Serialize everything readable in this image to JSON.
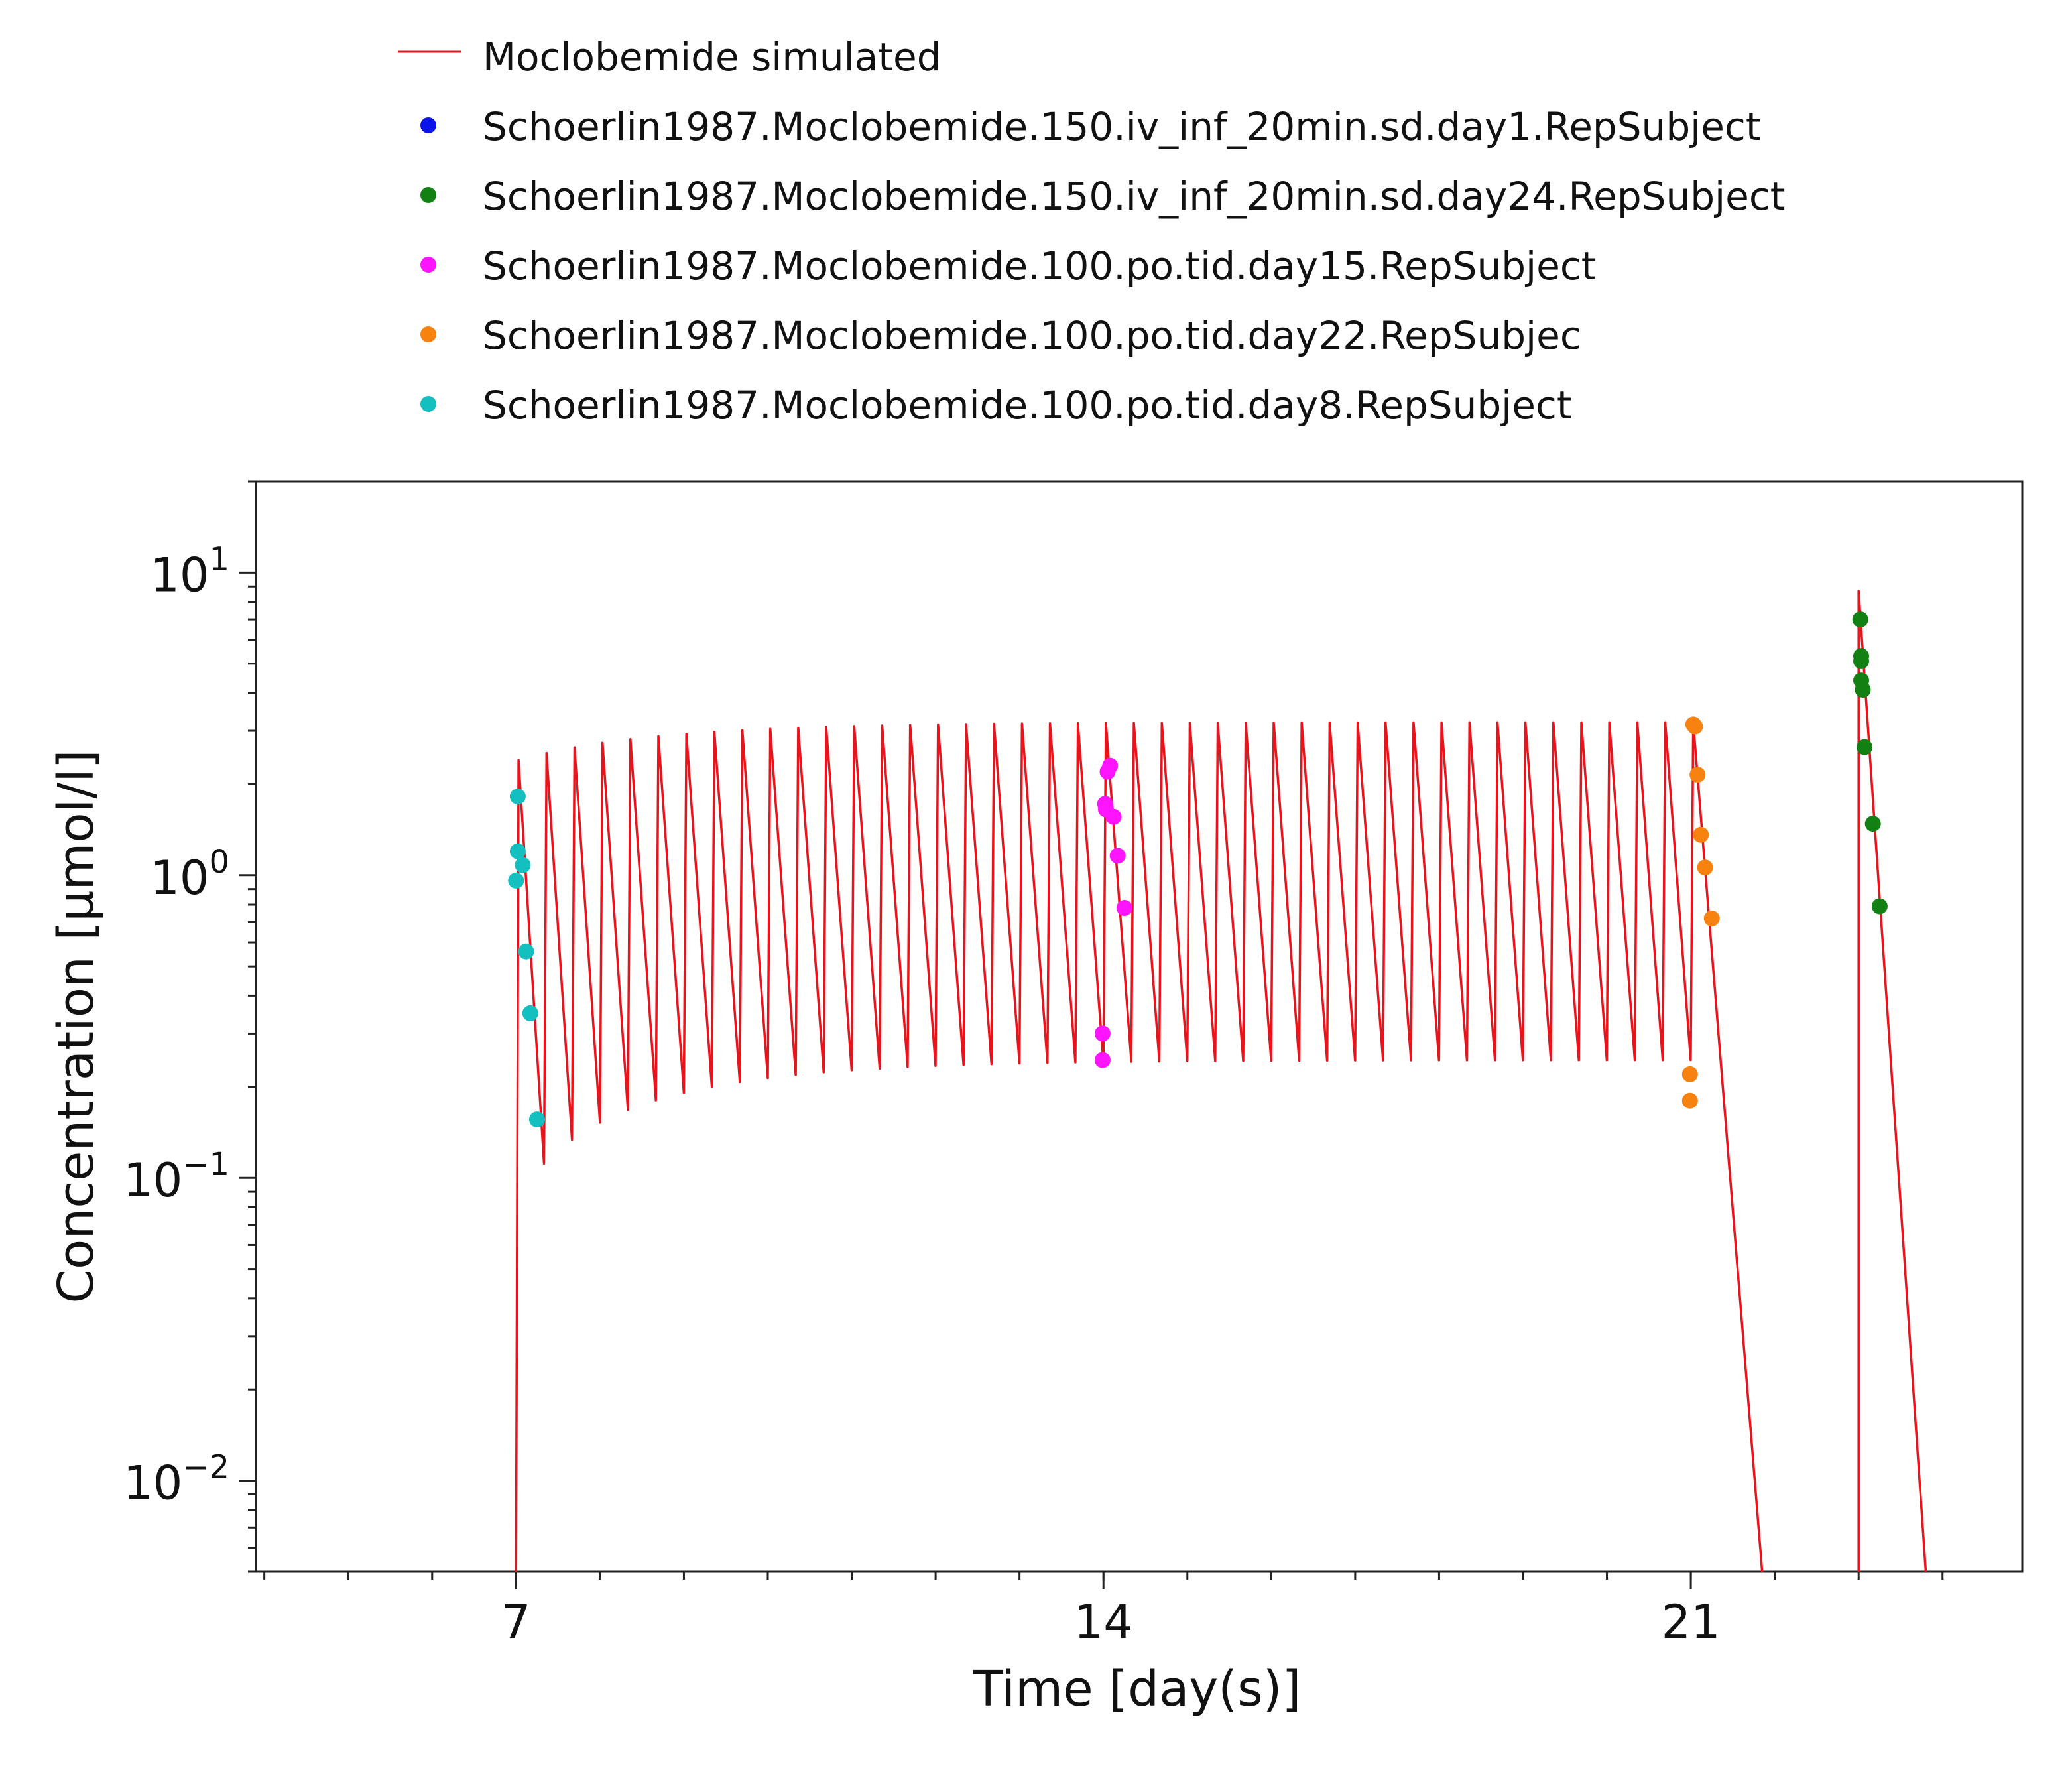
{
  "chart_data": {
    "type": "line",
    "title": "",
    "xlabel": "Time [day(s)]",
    "ylabel": "Concentration [µmol/l]",
    "yscale": "log",
    "xlim": [
      3.9,
      24.95
    ],
    "ylim": [
      0.005,
      20
    ],
    "grid": false,
    "legend_position": "top",
    "x_ticks": [
      {
        "value": 7,
        "label": "7"
      },
      {
        "value": 14,
        "label": "14"
      },
      {
        "value": 21,
        "label": "21"
      }
    ],
    "y_ticks": [
      {
        "value": 0.01,
        "base": "10",
        "exp": "−2"
      },
      {
        "value": 0.1,
        "base": "10",
        "exp": "−1"
      },
      {
        "value": 1,
        "base": "10",
        "exp": "0"
      },
      {
        "value": 10,
        "base": "10",
        "exp": "1"
      }
    ],
    "simulated": {
      "name": "Moclobemide simulated",
      "color": "#e8141b",
      "description_of_profile_parameters": {
        "dosing_start_day": 7,
        "dose_interval_days": 0.3333,
        "last_oral_dose_day": 21.0,
        "oral_peak_first": 2.4,
        "oral_peak_steady": 3.2,
        "oral_trough_first": 0.085,
        "oral_trough_steady": 0.245,
        "washout_end_day": 21.85,
        "iv_dose_day": 23.0,
        "iv_peak": 8.7,
        "iv_end_day": 23.8
      }
    },
    "series": [
      {
        "name": "Schoerlin1987.Moclobemide.150.iv_inf_20min.sd.day1.RepSubject",
        "color": "#0a14e8",
        "points": []
      },
      {
        "name": "Schoerlin1987.Moclobemide.150.iv_inf_20min.sd.day24.RepSubject",
        "color": "#138013",
        "points": [
          [
            23.02,
            7.0
          ],
          [
            23.03,
            5.3
          ],
          [
            23.03,
            5.1
          ],
          [
            23.03,
            4.4
          ],
          [
            23.05,
            4.1
          ],
          [
            23.07,
            2.65
          ],
          [
            23.17,
            1.48
          ],
          [
            23.25,
            0.79
          ]
        ]
      },
      {
        "name": "Schoerlin1987.Moclobemide.100.po.tid.day15.RepSubject",
        "color": "#ff14ff",
        "points": [
          [
            13.99,
            0.3
          ],
          [
            13.99,
            0.245
          ],
          [
            14.02,
            1.72
          ],
          [
            14.03,
            1.65
          ],
          [
            14.05,
            2.2
          ],
          [
            14.08,
            2.3
          ],
          [
            14.12,
            1.56
          ],
          [
            14.17,
            1.16
          ],
          [
            14.25,
            0.78
          ]
        ]
      },
      {
        "name": "Schoerlin1987.Moclobemide.100.po.tid.day22.RepSubjec",
        "color": "#f7820f",
        "points": [
          [
            20.99,
            0.22
          ],
          [
            20.99,
            0.18
          ],
          [
            21.03,
            3.15
          ],
          [
            21.05,
            3.1
          ],
          [
            21.08,
            2.15
          ],
          [
            21.12,
            1.36
          ],
          [
            21.17,
            1.06
          ],
          [
            21.25,
            0.72
          ]
        ]
      },
      {
        "name": "Schoerlin1987.Moclobemide.100.po.tid.day8.RepSubject",
        "color": "#14bfbf",
        "points": [
          [
            7.0,
            0.96
          ],
          [
            7.02,
            1.82
          ],
          [
            7.02,
            1.2
          ],
          [
            7.08,
            1.08
          ],
          [
            7.12,
            0.56
          ],
          [
            7.17,
            0.35
          ],
          [
            7.25,
            0.156
          ]
        ]
      }
    ]
  }
}
